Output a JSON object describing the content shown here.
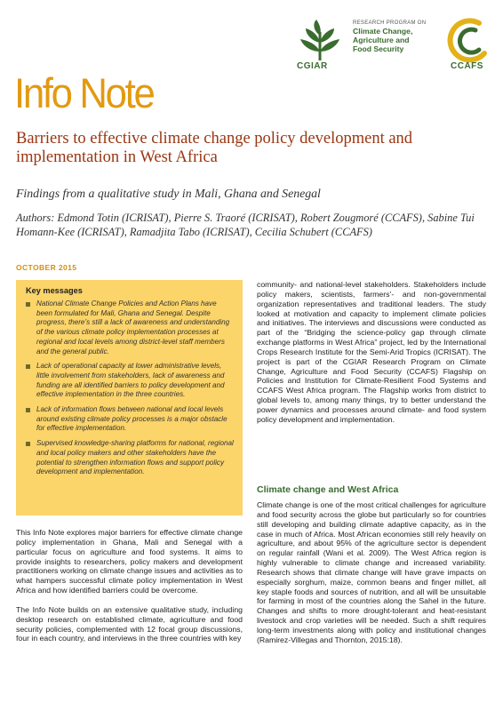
{
  "header": {
    "program_line1": "RESEARCH PROGRAM ON",
    "program_line2": "Climate Change,",
    "program_line3": "Agriculture and",
    "program_line4": "Food Security",
    "cgiar": "CGIAR",
    "ccafs": "CCAFS",
    "colors": {
      "orange": "#e39a10",
      "green": "#3a6c2f",
      "yellow_box": "#fbd46a",
      "title_red": "#9a3612"
    }
  },
  "doc_type": "Info Note",
  "title": "Barriers to effective climate change policy development and implementation in West Africa",
  "subtitle": "Findings from a qualitative study in Mali, Ghana and Senegal",
  "authors": "Authors: Edmond Totin (ICRISAT), Pierre S. Traoré (ICRISAT), Robert Zougmoré (CCAFS), Sabine Tui Homann-Kee (ICRISAT), Ramadjita Tabo (ICRISAT), Cecilia Schubert (CCAFS)",
  "date": "OCTOBER 2015",
  "key_messages": {
    "heading": "Key messages",
    "items": [
      "National Climate Change Policies and Action Plans have been formulated for Mali, Ghana and Senegal. Despite progress, there’s still a lack of awareness and understanding of the various climate policy implementation processes at regional and local levels among district-level staff members and the general public.",
      "Lack of operational capacity at lower administrative levels, little involvement from stakeholders, lack of awareness and funding are all identified barriers to policy development and effective implementation in the three countries.",
      "Lack of information flows between national and local levels around existing climate policy processes is a major obstacle for effective implementation.",
      "Supervised knowledge-sharing platforms for national, regional and local policy makers and other stakeholders have the potential to strengthen information flows and support policy development and implementation."
    ]
  },
  "left_paragraphs": [
    "This Info Note explores major barriers for effective climate change policy implementation in Ghana, Mali and Senegal with a particular focus on agriculture and food systems. It aims to provide insights to researchers, policy makers and development practitioners working on climate change issues and activities as to what hampers successful climate policy implementation in West Africa and how identified barriers could be overcome.",
    "The Info Note builds on an extensive qualitative study, including desktop research on established climate, agriculture and food security policies, complemented with 12 focal group discussions, four in each country, and interviews in the three countries with key"
  ],
  "right_top_paragraph": "community- and national-level stakeholders. Stakeholders include policy makers, scientists, farmers’- and non-governmental organization representatives and traditional leaders. The study looked at motivation and capacity to implement climate policies and initiatives. The interviews and discussions were conducted as part of the “Bridging the science-policy gap through climate exchange platforms in West Africa” project, led by the International Crops Research Institute for the Semi-Arid Tropics (ICRISAT). The project is part of the CGIAR Research Program on Climate Change, Agriculture and Food Security (CCAFS) Flagship on Policies and Institution for Climate-Resilient Food Systems and CCAFS West Africa program. The Flagship works from district to global levels to, among many things, try to better understand the power dynamics and processes around climate- and food system policy development and implementation.",
  "section_heading": "Climate change and West Africa",
  "right_body_paragraph": "Climate change is one of the most critical challenges for agriculture and food security across the globe but particularly so for countries still developing and building climate adaptive capacity, as in the case in much of Africa. Most African economies still rely heavily on agriculture, and about 95% of the agriculture sector is dependent on regular rainfall (Wani et al. 2009). The West Africa region is highly vulnerable to climate change and increased variability. Research shows that climate change will have grave impacts on especially sorghum, maize, common beans and finger millet, all key staple foods and sources of nutrition, and all will be unsuitable for farming in most of the countries along the Sahel in the future. Changes and shifts to more drought-tolerant and heat-resistant livestock and crop varieties will be needed. Such a shift requires long-term investments along with policy and institutional changes (Ramirez-Villegas and Thornton, 2015:18)."
}
